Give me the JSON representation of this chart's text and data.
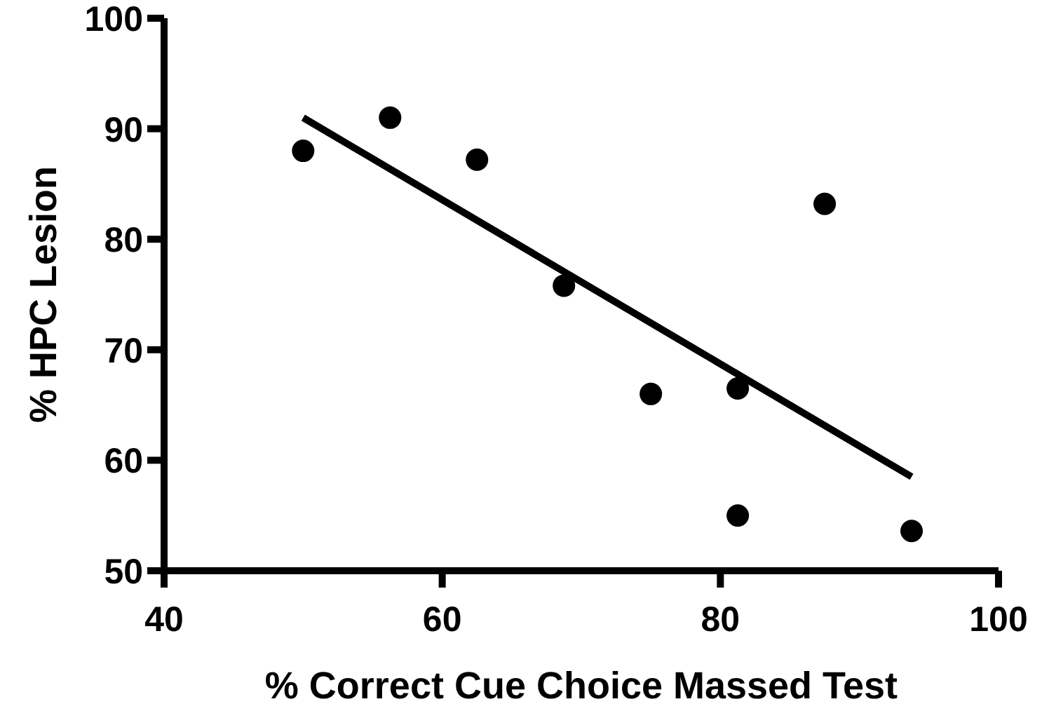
{
  "chart_data": {
    "type": "scatter",
    "xlabel": "% Correct Cue Choice Massed Test",
    "ylabel": "% HPC Lesion",
    "xlim": [
      40,
      100
    ],
    "xticks": [
      40,
      60,
      80,
      100
    ],
    "ylim": [
      50,
      100
    ],
    "yticks": [
      50,
      60,
      70,
      80,
      90,
      100
    ],
    "grid": false,
    "marker": "circle",
    "series": [
      {
        "color": "#000000",
        "x": [
          50,
          56.25,
          62.5,
          68.75,
          75,
          81.25,
          81.25,
          87.5,
          93.75
        ],
        "values": [
          88,
          91,
          87.2,
          75.8,
          66,
          66.5,
          55,
          83.2,
          53.6
        ]
      },
      {
        "type": "line",
        "color": "#000000",
        "marker": "none",
        "line_style": "solid",
        "x": [
          50,
          93.75
        ],
        "values": [
          91,
          58.5
        ]
      }
    ]
  }
}
